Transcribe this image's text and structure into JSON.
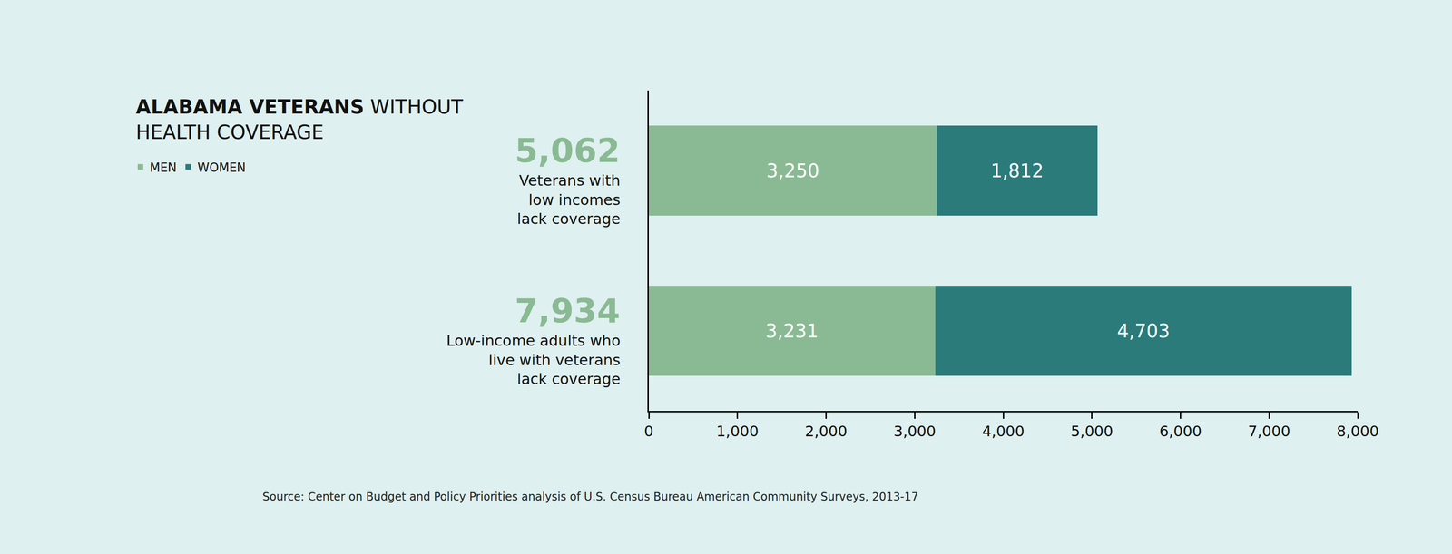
{
  "chart_data": {
    "type": "bar",
    "orientation": "horizontal",
    "stacked": true,
    "title": "ALABAMA VETERANS WITHOUT HEALTH COVERAGE",
    "categories": [
      "Veterans with low incomes lack coverage",
      "Low-income adults who live with veterans lack coverage"
    ],
    "series": [
      {
        "name": "MEN",
        "color": "#8aba93",
        "values": [
          3250,
          3231
        ],
        "value_labels": [
          "3,250",
          "3,231"
        ]
      },
      {
        "name": "WOMEN",
        "color": "#2a7b7a",
        "values": [
          1812,
          4703
        ],
        "value_labels": [
          "1,812",
          "4,703"
        ]
      }
    ],
    "totals": {
      "values": [
        5062,
        7934
      ],
      "value_labels": [
        "5,062",
        "7,934"
      ],
      "color": "#8aba93"
    },
    "data_labels": true,
    "xlim": [
      0,
      8000
    ],
    "xticks": [
      0,
      {
        "value": 1000,
        "label": "1,000"
      },
      {
        "value": 2000,
        "label": "2,000"
      },
      {
        "value": 3000,
        "label": "3,000"
      },
      {
        "value": 4000,
        "label": "4,000"
      },
      {
        "value": 5000,
        "label": "5,000"
      },
      {
        "value": 6000,
        "label": "6,000"
      },
      {
        "value": 7000,
        "label": "7,000"
      },
      {
        "value": 8000,
        "label": "8,000"
      }
    ],
    "grid": false,
    "legend": "top left",
    "tick_labels": "x",
    "source": "Source: Center on Budget and Policy Priorities analysis of U.S. Census Bureau American Community Surveys, 2013-17"
  }
}
